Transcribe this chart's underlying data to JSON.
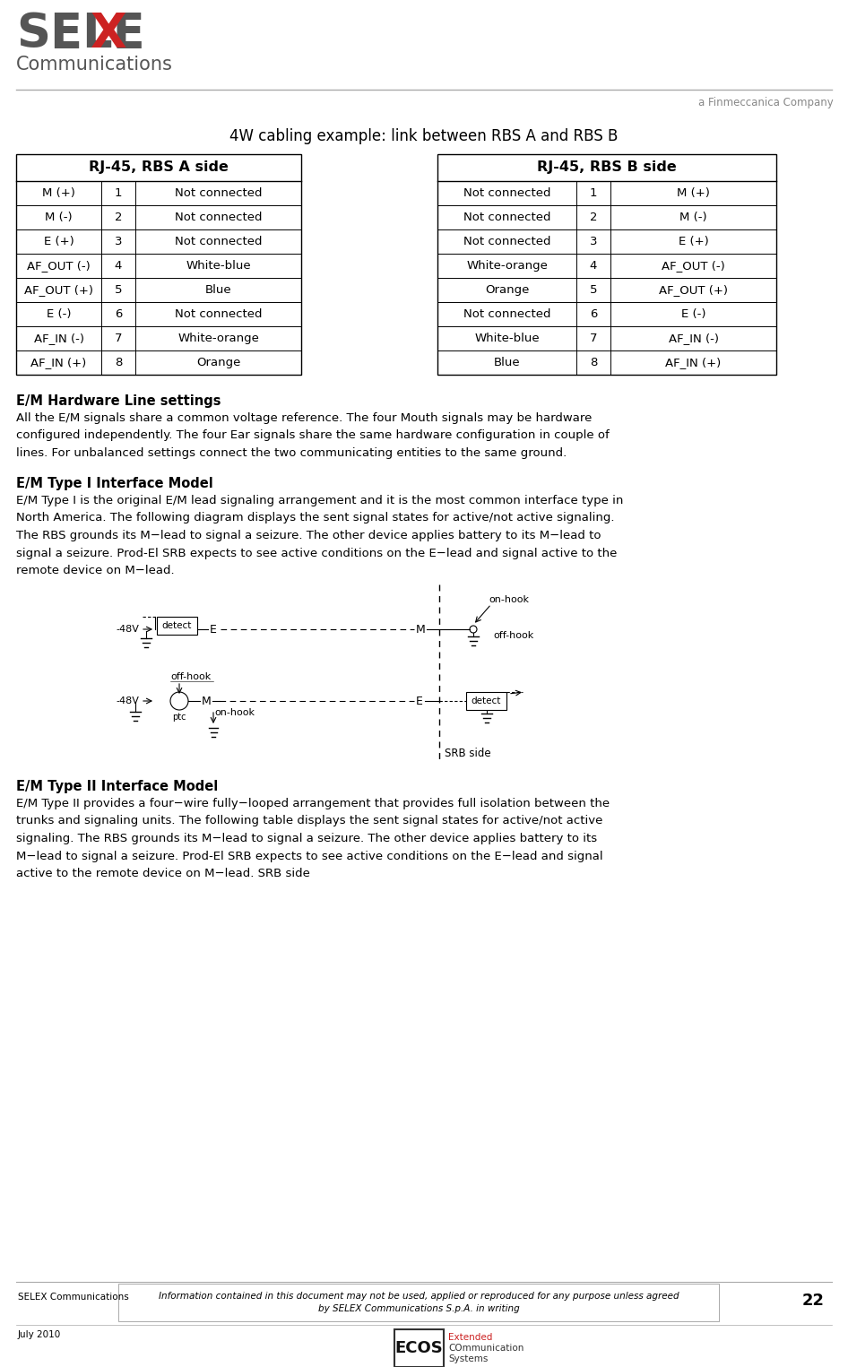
{
  "bg_color": "#ffffff",
  "title_text": "4W cabling example: link between RBS A and RBS B",
  "header_a": "RJ-45, RBS A side",
  "header_b": "RJ-45, RBS B side",
  "table_a": [
    [
      "M (+)",
      "1",
      "Not connected"
    ],
    [
      "M (-)",
      "2",
      "Not connected"
    ],
    [
      "E (+)",
      "3",
      "Not connected"
    ],
    [
      "AF_OUT (-)",
      "4",
      "White-blue"
    ],
    [
      "AF_OUT (+)",
      "5",
      "Blue"
    ],
    [
      "E (-)",
      "6",
      "Not connected"
    ],
    [
      "AF_IN (-)",
      "7",
      "White-orange"
    ],
    [
      "AF_IN (+)",
      "8",
      "Orange"
    ]
  ],
  "table_b": [
    [
      "Not connected",
      "1",
      "M (+)"
    ],
    [
      "Not connected",
      "2",
      "M (-)"
    ],
    [
      "Not connected",
      "3",
      "E (+)"
    ],
    [
      "White-orange",
      "4",
      "AF_OUT (-)"
    ],
    [
      "Orange",
      "5",
      "AF_OUT (+)"
    ],
    [
      "Not connected",
      "6",
      "E (-)"
    ],
    [
      "White-blue",
      "7",
      "AF_IN (-)"
    ],
    [
      "Blue",
      "8",
      "AF_IN (+)"
    ]
  ],
  "section1_title": "E/M Hardware Line settings",
  "section1_body": "All the E/M signals share a common voltage reference. The four Mouth signals may be hardware\nconfigured independently. The four Ear signals share the same hardware configuration in couple of\nlines. For unbalanced settings connect the two communicating entities to the same ground.",
  "section2_title": "E/M Type I Interface Model",
  "section2_body": "E/M Type I is the original E/M lead signaling arrangement and it is the most common interface type in\nNorth America. The following diagram displays the sent signal states for active/not active signaling.\nThe RBS grounds its M−lead to signal a seizure. The other device applies battery to its M−lead to\nsignal a seizure. Prod-El SRB expects to see active conditions on the E−lead and signal active to the\nremote device on M−lead.",
  "srb_side_label": "SRB side",
  "section3_title": "E/M Type II Interface Model",
  "section3_body": "E/M Type II provides a four−wire fully−looped arrangement that provides full isolation between the\ntrunks and signaling units. The following table displays the sent signal states for active/not active\nsignaling. The RBS grounds its M−lead to signal a seizure. The other device applies battery to its\nM−lead to signal a seizure. Prod-El SRB expects to see active conditions on the E−lead and signal\nactive to the remote device on M−lead. SRB side",
  "footer_left1": "SELEX Communications",
  "footer_left2": "July 2010",
  "footer_center": "Information contained in this document may not be used, applied or reproduced for any purpose unless agreed\nby SELEX Communications S.p.A. in writing",
  "footer_page": "22",
  "selex_text_gray": "#555555",
  "selex_text_red": "#cc2222",
  "finmeccanica_color": "#888888",
  "table_border_color": "#000000",
  "text_color": "#000000"
}
